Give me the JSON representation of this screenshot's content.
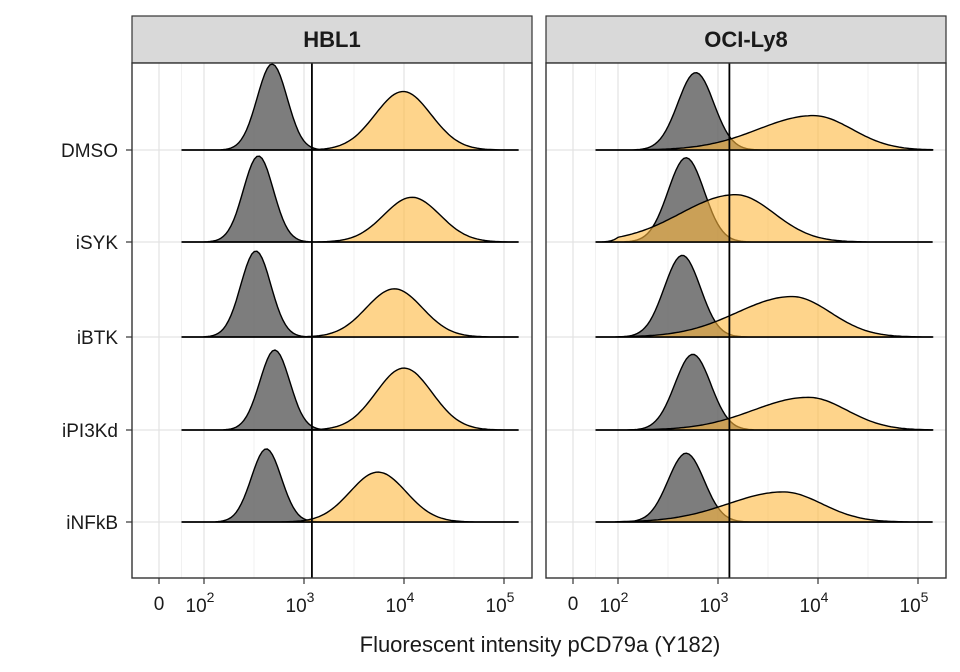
{
  "chart_data": {
    "type": "ridgeline-density",
    "xlabel": "Fluorescent intensity pCD79a (Y182)",
    "x_scale": "log10 (zero shown at left)",
    "x_ticks": [
      {
        "label": "0",
        "value": 0
      },
      {
        "base": "10",
        "exp": "2",
        "value": 100
      },
      {
        "base": "10",
        "exp": "3",
        "value": 1000
      },
      {
        "base": "10",
        "exp": "4",
        "value": 10000
      },
      {
        "base": "10",
        "exp": "5",
        "value": 100000
      }
    ],
    "xlim": [
      0,
      150000
    ],
    "grid": true,
    "panels": [
      {
        "title": "HBL1",
        "threshold": 1200,
        "rows": [
          {
            "label": "DMSO",
            "gray": {
              "peak": 480,
              "height": 1.0
            },
            "orange": {
              "peak": 9800,
              "height": 0.68
            }
          },
          {
            "label": "iSYK",
            "gray": {
              "peak": 350,
              "height": 1.0
            },
            "orange": {
              "peak": 12000,
              "height": 0.52
            }
          },
          {
            "label": "iBTK",
            "gray": {
              "peak": 330,
              "height": 1.0
            },
            "orange": {
              "peak": 8000,
              "height": 0.56
            }
          },
          {
            "label": "iPI3Kd",
            "gray": {
              "peak": 510,
              "height": 0.93
            },
            "orange": {
              "peak": 10000,
              "height": 0.72
            }
          },
          {
            "label": "iNFkB",
            "gray": {
              "peak": 420,
              "height": 0.85
            },
            "orange": {
              "peak": 5500,
              "height": 0.58
            }
          }
        ]
      },
      {
        "title": "OCI-Ly8",
        "threshold": 1300,
        "rows": [
          {
            "label": "DMSO",
            "gray": {
              "peak": 600,
              "height": 0.9
            },
            "orange": {
              "peak": 9000,
              "height": 0.4
            }
          },
          {
            "label": "iSYK",
            "gray": {
              "peak": 480,
              "height": 0.98
            },
            "orange": {
              "peak": 1500,
              "height": 0.55
            }
          },
          {
            "label": "iBTK",
            "gray": {
              "peak": 440,
              "height": 0.95
            },
            "orange": {
              "peak": 5500,
              "height": 0.47
            }
          },
          {
            "label": "iPI3Kd",
            "gray": {
              "peak": 560,
              "height": 0.88
            },
            "orange": {
              "peak": 8000,
              "height": 0.38
            }
          },
          {
            "label": "iNFkB",
            "gray": {
              "peak": 480,
              "height": 0.8
            },
            "orange": {
              "peak": 4500,
              "height": 0.35
            }
          }
        ]
      }
    ],
    "series": [
      {
        "color": "#666666"
      },
      {
        "color": "#fdb83d"
      }
    ]
  }
}
